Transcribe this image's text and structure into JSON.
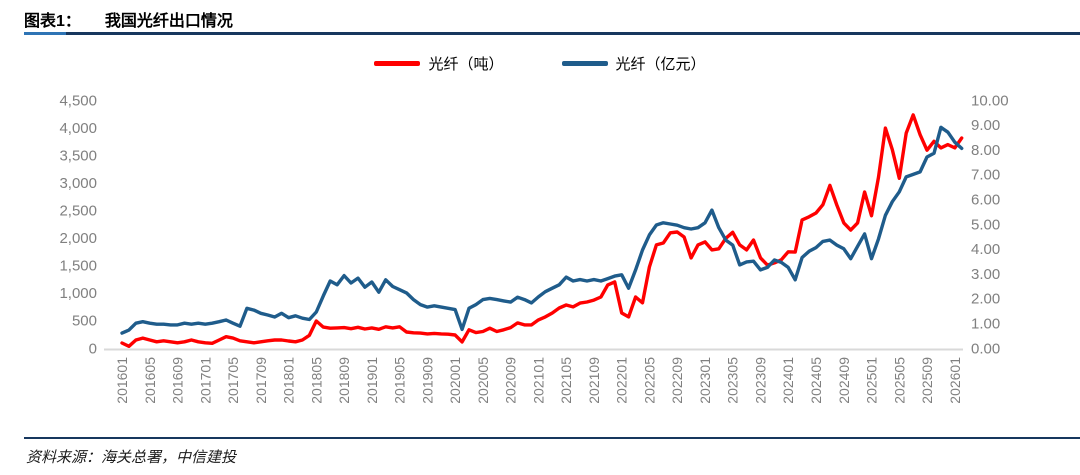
{
  "header": {
    "prefix": "图表1：",
    "title": "我国光纤出口情况"
  },
  "legend": [
    {
      "label": "光纤（吨）",
      "color": "#FF0000"
    },
    {
      "label": "光纤（亿元）",
      "color": "#1F5C8B"
    }
  ],
  "footer": {
    "source": "资料来源：海关总署，中信建投"
  },
  "colors": {
    "accent_rule": "#17375E",
    "accent_rule_start": "#2E74B5",
    "axis_label": "#808080",
    "baseline": "#D9D9D9",
    "series_tons": "#FF0000",
    "series_yuan": "#1F5C8B"
  },
  "chart_data": {
    "type": "line",
    "title": "我国光纤出口情况",
    "x_start_month": "201601",
    "x_months_count": 122,
    "x_tick_labels": [
      "201601",
      "201605",
      "201609",
      "201701",
      "201705",
      "201709",
      "201801",
      "201805",
      "201809",
      "201901",
      "201905",
      "201909",
      "202001",
      "202005",
      "202009",
      "202101",
      "202105",
      "202109",
      "202201",
      "202205",
      "202209",
      "202301",
      "202305",
      "202309",
      "202401",
      "202405",
      "202409",
      "202501",
      "202505",
      "202509",
      "202601"
    ],
    "left_axis": {
      "ticks": [
        "4,500",
        "4,000",
        "3,500",
        "3,000",
        "2,500",
        "2,000",
        "1,500",
        "1,000",
        "500",
        "0"
      ],
      "min": 0,
      "max": 4500,
      "step": 500
    },
    "right_axis": {
      "ticks": [
        "10.00",
        "9.00",
        "8.00",
        "7.00",
        "6.00",
        "5.00",
        "4.00",
        "3.00",
        "2.00",
        "1.00",
        "0.00"
      ],
      "min": 0,
      "max": 10,
      "step": 1
    },
    "grid": "off",
    "legend_position": "top-center",
    "series": [
      {
        "name": "光纤（吨）",
        "axis": "left",
        "color": "#FF0000",
        "values": [
          90,
          30,
          145,
          180,
          145,
          112,
          130,
          112,
          94,
          112,
          145,
          112,
          94,
          85,
          145,
          205,
          180,
          130,
          112,
          94,
          112,
          130,
          145,
          145,
          127,
          112,
          145,
          230,
          490,
          380,
          360,
          365,
          370,
          350,
          375,
          345,
          365,
          340,
          385,
          365,
          385,
          290,
          275,
          270,
          255,
          265,
          255,
          250,
          235,
          110,
          330,
          280,
          300,
          360,
          300,
          330,
          370,
          455,
          420,
          420,
          510,
          565,
          635,
          725,
          780,
          745,
          815,
          835,
          870,
          925,
          1145,
          1200,
          635,
          565,
          925,
          820,
          1470,
          1870,
          1905,
          2090,
          2105,
          2015,
          1635,
          1870,
          1925,
          1780,
          1800,
          1990,
          2100,
          1870,
          1780,
          1960,
          1635,
          1505,
          1545,
          1600,
          1745,
          1740,
          2325,
          2380,
          2450,
          2600,
          2950,
          2595,
          2270,
          2140,
          2270,
          2830,
          2400,
          3100,
          3990,
          3600,
          3080,
          3900,
          4230,
          3870,
          3590,
          3750,
          3630,
          3690,
          3630,
          3810
        ]
      },
      {
        "name": "光纤（亿元）",
        "axis": "right",
        "color": "#1F5C8B",
        "values": [
          0.6,
          0.72,
          1.0,
          1.06,
          1.0,
          0.96,
          0.96,
          0.93,
          0.93,
          1.0,
          0.96,
          1.0,
          0.96,
          1.0,
          1.06,
          1.13,
          1.0,
          0.88,
          1.6,
          1.53,
          1.4,
          1.33,
          1.25,
          1.4,
          1.22,
          1.3,
          1.2,
          1.15,
          1.45,
          2.1,
          2.7,
          2.55,
          2.92,
          2.62,
          2.82,
          2.45,
          2.66,
          2.25,
          2.75,
          2.48,
          2.35,
          2.22,
          1.95,
          1.75,
          1.65,
          1.7,
          1.65,
          1.6,
          1.55,
          0.75,
          1.6,
          1.75,
          1.95,
          2.0,
          1.95,
          1.9,
          1.85,
          2.05,
          1.95,
          1.82,
          2.06,
          2.27,
          2.41,
          2.55,
          2.86,
          2.7,
          2.76,
          2.7,
          2.76,
          2.7,
          2.8,
          2.9,
          2.95,
          2.41,
          3.15,
          3.95,
          4.56,
          4.96,
          5.05,
          5.0,
          4.95,
          4.85,
          4.8,
          4.85,
          5.05,
          5.56,
          4.85,
          4.35,
          4.15,
          3.35,
          3.47,
          3.5,
          3.15,
          3.25,
          3.55,
          3.45,
          3.25,
          2.75,
          3.65,
          3.9,
          4.05,
          4.3,
          4.35,
          4.15,
          4.0,
          3.6,
          4.1,
          4.6,
          3.6,
          4.4,
          5.35,
          5.9,
          6.3,
          6.9,
          7.0,
          7.1,
          7.7,
          7.85,
          8.9,
          8.7,
          8.3,
          8.05
        ]
      }
    ]
  }
}
